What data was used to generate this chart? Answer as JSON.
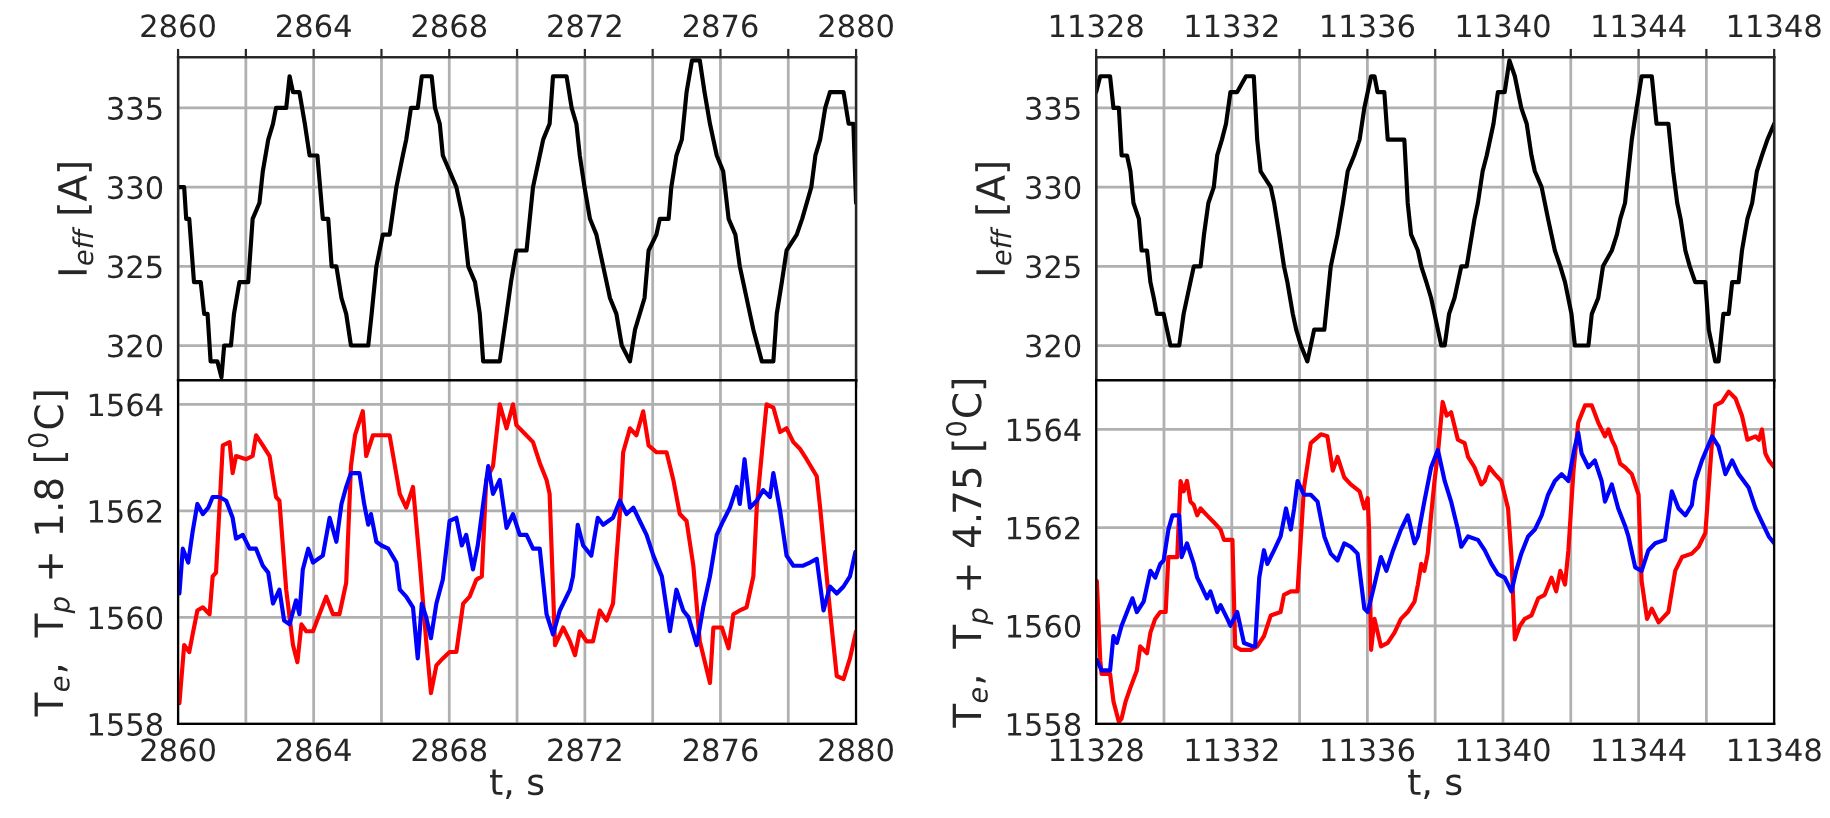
{
  "chart_data": [
    {
      "type": "line",
      "ylabel": "I$_{eff}$ [A]",
      "tick_labels": "y",
      "xlim": [
        2860,
        2880
      ],
      "x2lim": [
        2860,
        2880
      ],
      "x2ticks": [
        2860,
        {
          "value": 2862,
          "label": null
        },
        2864,
        {
          "value": 2866,
          "label": null
        },
        2868,
        {
          "value": 2870,
          "label": null
        },
        2872,
        {
          "value": 2874,
          "label": null
        },
        2876,
        {
          "value": 2878,
          "label": null
        },
        2880
      ],
      "ylim": [
        317.8,
        338.2
      ],
      "yticks": [
        320,
        325,
        330,
        335
      ],
      "grid": true,
      "series": [
        {
          "color": "#000000",
          "x": [
            2860,
            2860.18,
            2860.24,
            2860.33,
            2860.47,
            2860.67,
            2860.77,
            2860.87,
            2860.96,
            2861.16,
            2861.28,
            2861.36,
            2861.56,
            2861.65,
            2861.81,
            2862.07,
            2862.2,
            2862.4,
            2862.5,
            2862.66,
            2862.8,
            2862.89,
            2863.19,
            2863.29,
            2863.39,
            2863.58,
            2863.74,
            2863.88,
            2864.11,
            2864.27,
            2864.43,
            2864.53,
            2864.67,
            2864.82,
            2864.96,
            2865.1,
            2865.61,
            2865.71,
            2865.85,
            2866.04,
            2866.24,
            2866.44,
            2866.63,
            2866.73,
            2866.87,
            2867.07,
            2867.19,
            2867.48,
            2867.58,
            2867.72,
            2867.81,
            2868.01,
            2868.21,
            2868.41,
            2868.56,
            2868.76,
            2868.9,
            2869.0,
            2869.49,
            2869.69,
            2869.82,
            2869.98,
            2870.28,
            2870.47,
            2870.67,
            2870.77,
            2870.96,
            2871.06,
            2871.46,
            2871.61,
            2871.75,
            2871.85,
            2871.99,
            2872.15,
            2872.34,
            2872.64,
            2872.74,
            2872.93,
            2873.09,
            2873.33,
            2873.48,
            2873.76,
            2873.88,
            2874.11,
            2874.21,
            2874.47,
            2874.55,
            2874.7,
            2874.86,
            2875.0,
            2875.16,
            2875.39,
            2875.53,
            2875.69,
            2875.89,
            2876.08,
            2876.24,
            2876.44,
            2876.57,
            2876.67,
            2876.87,
            2876.97,
            2877.22,
            2877.56,
            2877.66,
            2877.81,
            2877.95,
            2878.25,
            2878.41,
            2878.68,
            2878.8,
            2878.94,
            2879.09,
            2879.23,
            2879.63,
            2879.78,
            2879.92,
            2880
          ],
          "values": [
            330,
            330,
            328,
            328,
            324,
            324,
            322,
            322,
            319,
            319,
            318,
            320,
            320,
            322,
            324,
            324,
            328,
            329,
            331,
            333,
            334,
            335,
            335,
            337,
            336,
            336,
            334,
            332,
            332,
            328,
            328,
            325,
            325,
            323,
            322,
            320,
            320,
            322,
            325,
            327,
            327,
            330,
            332,
            333,
            335,
            335,
            337,
            337,
            335,
            334,
            332,
            331,
            330,
            328,
            325,
            324,
            322,
            319,
            319,
            322,
            324,
            326,
            326,
            330,
            332,
            333,
            334,
            337,
            337,
            335,
            334,
            332,
            330,
            328,
            327,
            324,
            323,
            322,
            320,
            319,
            321,
            323,
            326,
            327,
            328,
            328,
            330,
            332,
            333,
            336,
            338,
            338,
            336,
            334,
            332,
            331,
            328,
            327,
            325,
            324,
            322,
            321,
            319,
            319,
            322,
            324,
            326,
            327,
            328,
            330,
            332,
            333,
            335,
            336,
            336,
            334,
            334,
            329
          ]
        }
      ]
    },
    {
      "type": "line",
      "ylabel": "I$_{eff}$ [A]",
      "tick_labels": "y",
      "xlim": [
        11328,
        11348
      ],
      "x2lim": [
        11328,
        11348
      ],
      "x2ticks": [
        11328,
        {
          "value": 11330,
          "label": null
        },
        11332,
        {
          "value": 11334,
          "label": null
        },
        11336,
        {
          "value": 11338,
          "label": null
        },
        11340,
        {
          "value": 11342,
          "label": null
        },
        11344,
        {
          "value": 11346,
          "label": null
        },
        11348
      ],
      "ylim": [
        317.8,
        338.2
      ],
      "yticks": [
        320,
        325,
        330,
        335
      ],
      "grid": true,
      "series": [
        {
          "color": "#000000",
          "x": [
            11328,
            11328.12,
            11328.41,
            11328.51,
            11328.67,
            11328.75,
            11328.91,
            11329.01,
            11329.1,
            11329.26,
            11329.34,
            11329.5,
            11329.6,
            11329.7,
            11329.79,
            11329.99,
            11330.19,
            11330.45,
            11330.58,
            11330.78,
            11330.88,
            11331.08,
            11331.18,
            11331.31,
            11331.47,
            11331.57,
            11331.71,
            11331.83,
            11331.96,
            11332.16,
            11332.42,
            11332.65,
            11332.75,
            11332.85,
            11333.15,
            11333.25,
            11333.4,
            11333.54,
            11333.64,
            11333.8,
            11333.9,
            11334.04,
            11334.23,
            11334.33,
            11334.43,
            11334.73,
            11334.92,
            11335.12,
            11335.28,
            11335.42,
            11335.61,
            11335.77,
            11335.91,
            11336.11,
            11336.21,
            11336.3,
            11336.5,
            11336.6,
            11337.09,
            11337.19,
            11337.29,
            11337.49,
            11337.59,
            11337.74,
            11337.88,
            11338.08,
            11338.18,
            11338.28,
            11338.41,
            11338.57,
            11338.77,
            11338.93,
            11339.16,
            11339.26,
            11339.4,
            11339.52,
            11339.72,
            11339.85,
            11340.05,
            11340.19,
            11340.35,
            11340.54,
            11340.7,
            11340.84,
            11340.94,
            11341.14,
            11341.33,
            11341.43,
            11341.53,
            11341.69,
            11341.83,
            11342.02,
            11342.12,
            11342.52,
            11342.62,
            11342.81,
            11342.95,
            11343.21,
            11343.36,
            11343.46,
            11343.6,
            11343.7,
            11343.8,
            11343.94,
            11344.09,
            11344.39,
            11344.53,
            11344.88,
            11345.02,
            11345.14,
            11345.24,
            11345.38,
            11345.51,
            11345.67,
            11345.97,
            11346.07,
            11346.26,
            11346.36,
            11346.5,
            11346.66,
            11346.76,
            11346.95,
            11347.05,
            11347.21,
            11347.35,
            11347.49,
            11347.64,
            11347.8,
            11348
          ],
          "values": [
            336,
            337,
            337,
            335,
            335,
            332,
            332,
            331,
            329,
            328,
            326,
            326,
            324,
            323,
            322,
            322,
            320,
            320,
            322,
            324,
            325,
            325,
            327,
            329,
            330,
            332,
            333,
            334,
            336,
            336,
            337,
            337,
            333,
            331,
            330,
            329,
            327,
            325,
            324,
            322,
            321,
            320,
            319,
            320,
            321,
            321,
            325,
            327,
            329,
            331,
            332,
            333,
            335,
            337,
            337,
            336,
            336,
            333,
            333,
            329,
            327,
            326,
            325,
            324,
            323,
            321,
            320,
            320,
            322,
            323,
            325,
            325,
            328,
            329,
            331,
            332,
            334,
            336,
            336,
            338,
            337,
            335,
            334,
            332,
            331,
            330,
            328,
            327,
            326,
            325,
            324,
            322,
            320,
            320,
            322,
            323,
            325,
            326,
            327,
            328,
            329,
            331,
            333,
            335,
            337,
            337,
            334,
            334,
            331,
            329,
            328,
            326,
            325,
            324,
            324,
            321,
            319,
            319,
            322,
            322,
            324,
            324,
            326,
            328,
            329,
            331,
            332,
            333,
            334
          ]
        }
      ]
    },
    {
      "type": "line",
      "xlabel": "t, s",
      "ylabel": "T$_{e}$,  T$_{p}$ + 1.8 [$^{0}$C]",
      "xlim": [
        2860,
        2880
      ],
      "xticks": [
        2860,
        {
          "value": 2862,
          "label": null
        },
        2864,
        {
          "value": 2866,
          "label": null
        },
        2868,
        {
          "value": 2870,
          "label": null
        },
        2872,
        {
          "value": 2874,
          "label": null
        },
        2876,
        {
          "value": 2878,
          "label": null
        },
        2880
      ],
      "ylim": [
        1558,
        1564.45
      ],
      "yticks": [
        1558,
        1560,
        1562,
        1564
      ],
      "grid": true,
      "series": [
        {
          "color": "#ff0000",
          "x": [
            2860.04,
            2860.18,
            2860.33,
            2860.43,
            2860.57,
            2860.73,
            2860.93,
            2861.02,
            2861.12,
            2861.32,
            2861.52,
            2861.61,
            2861.71,
            2862.01,
            2862.2,
            2862.3,
            2862.5,
            2862.7,
            2862.89,
            2862.99,
            2863.19,
            2863.39,
            2863.52,
            2863.64,
            2863.78,
            2863.98,
            2864.17,
            2864.37,
            2864.57,
            2864.76,
            2864.96,
            2865.1,
            2865.22,
            2865.35,
            2865.45,
            2865.55,
            2865.75,
            2866.04,
            2866.24,
            2866.54,
            2866.73,
            2866.93,
            2867.13,
            2867.32,
            2867.46,
            2867.62,
            2867.81,
            2868.01,
            2868.21,
            2868.41,
            2868.6,
            2868.8,
            2868.96,
            2869.09,
            2869.29,
            2869.49,
            2869.69,
            2869.88,
            2869.98,
            2870.18,
            2870.47,
            2870.67,
            2870.87,
            2870.96,
            2871.12,
            2871.36,
            2871.56,
            2871.71,
            2871.85,
            2872.05,
            2872.24,
            2872.44,
            2872.64,
            2872.83,
            2873.03,
            2873.13,
            2873.33,
            2873.52,
            2873.72,
            2873.88,
            2874.11,
            2874.41,
            2874.61,
            2874.8,
            2875.0,
            2875.2,
            2875.39,
            2875.69,
            2875.79,
            2876.04,
            2876.24,
            2876.38,
            2876.57,
            2876.77,
            2876.97,
            2877.07,
            2877.26,
            2877.36,
            2877.56,
            2877.76,
            2877.95,
            2878.15,
            2878.35,
            2878.54,
            2878.84,
            2878.94,
            2879.23,
            2879.43,
            2879.63,
            2879.82,
            2880
          ],
          "values": [
            1558.39,
            1559.48,
            1559.35,
            1559.68,
            1560.13,
            1560.19,
            1560.06,
            1560.77,
            1560.84,
            1563.23,
            1563.29,
            1562.71,
            1563.03,
            1562.97,
            1563.03,
            1563.42,
            1563.23,
            1563.03,
            1562.26,
            1562.19,
            1560.52,
            1559.48,
            1559.16,
            1559.87,
            1559.74,
            1559.74,
            1560.06,
            1560.39,
            1560.06,
            1560.06,
            1560.65,
            1562.84,
            1563.42,
            1563.68,
            1563.87,
            1563.03,
            1563.42,
            1563.42,
            1563.42,
            1562.32,
            1562.06,
            1562.45,
            1561.03,
            1559.55,
            1558.58,
            1559.1,
            1559.23,
            1559.35,
            1559.35,
            1560.26,
            1560.39,
            1560.71,
            1560.77,
            1562.58,
            1562.84,
            1564.0,
            1563.55,
            1564.0,
            1563.61,
            1563.48,
            1563.29,
            1562.9,
            1562.58,
            1562.32,
            1559.48,
            1559.81,
            1559.55,
            1559.29,
            1559.74,
            1559.55,
            1559.55,
            1560.13,
            1559.94,
            1560.26,
            1561.94,
            1563.1,
            1563.55,
            1563.42,
            1563.87,
            1563.23,
            1563.1,
            1563.1,
            1562.58,
            1561.94,
            1561.81,
            1560.97,
            1559.55,
            1558.77,
            1559.81,
            1559.81,
            1559.42,
            1560.06,
            1560.13,
            1560.19,
            1560.77,
            1562.06,
            1563.35,
            1564.0,
            1563.94,
            1563.48,
            1563.55,
            1563.29,
            1563.16,
            1562.97,
            1562.65,
            1562.06,
            1560.13,
            1558.9,
            1558.84,
            1559.23,
            1559.74
          ]
        },
        {
          "color": "#0000ff",
          "x": [
            2860.04,
            2860.14,
            2860.3,
            2860.43,
            2860.57,
            2860.73,
            2860.89,
            2861.02,
            2861.22,
            2861.42,
            2861.61,
            2861.71,
            2861.91,
            2862.11,
            2862.3,
            2862.5,
            2862.66,
            2862.8,
            2862.99,
            2863.13,
            2863.29,
            2863.48,
            2863.58,
            2863.68,
            2863.84,
            2863.98,
            2864.27,
            2864.47,
            2864.67,
            2864.82,
            2864.96,
            2865.1,
            2865.35,
            2865.49,
            2865.61,
            2865.69,
            2865.85,
            2866.0,
            2866.2,
            2866.44,
            2866.54,
            2866.73,
            2866.93,
            2867.07,
            2867.19,
            2867.32,
            2867.46,
            2867.62,
            2867.81,
            2868.01,
            2868.21,
            2868.37,
            2868.5,
            2868.7,
            2868.84,
            2869.0,
            2869.15,
            2869.29,
            2869.49,
            2869.69,
            2869.88,
            2870.08,
            2870.28,
            2870.47,
            2870.67,
            2870.87,
            2871.06,
            2871.26,
            2871.56,
            2871.65,
            2871.79,
            2871.95,
            2872.19,
            2872.38,
            2872.54,
            2872.83,
            2873.03,
            2873.23,
            2873.43,
            2873.62,
            2873.82,
            2874.02,
            2874.27,
            2874.51,
            2874.7,
            2874.9,
            2875.06,
            2875.3,
            2875.49,
            2875.69,
            2875.89,
            2876.08,
            2876.28,
            2876.48,
            2876.57,
            2876.71,
            2876.87,
            2877.07,
            2877.26,
            2877.46,
            2877.56,
            2877.76,
            2877.95,
            2878.15,
            2878.44,
            2878.64,
            2878.84,
            2879.04,
            2879.23,
            2879.43,
            2879.63,
            2879.82,
            2879.98
          ],
          "values": [
            1560.45,
            1561.29,
            1561.03,
            1561.61,
            1562.13,
            1561.94,
            1562.06,
            1562.26,
            1562.26,
            1562.19,
            1561.87,
            1561.48,
            1561.55,
            1561.29,
            1561.29,
            1560.97,
            1560.84,
            1560.26,
            1560.52,
            1559.94,
            1559.87,
            1560.32,
            1560.06,
            1560.9,
            1561.29,
            1561.03,
            1561.16,
            1561.87,
            1561.42,
            1562.13,
            1562.45,
            1562.71,
            1562.71,
            1562.13,
            1561.74,
            1561.94,
            1561.42,
            1561.35,
            1561.29,
            1561.03,
            1560.52,
            1560.39,
            1560.19,
            1559.23,
            1560.26,
            1560.0,
            1559.61,
            1560.26,
            1560.71,
            1561.81,
            1561.87,
            1561.35,
            1561.55,
            1560.9,
            1561.35,
            1562.13,
            1562.84,
            1562.32,
            1562.58,
            1561.68,
            1561.94,
            1561.55,
            1561.55,
            1561.29,
            1561.29,
            1560.06,
            1559.68,
            1560.13,
            1560.52,
            1560.77,
            1561.74,
            1561.35,
            1561.16,
            1561.87,
            1561.74,
            1561.87,
            1562.19,
            1561.94,
            1562.06,
            1561.81,
            1561.55,
            1561.16,
            1560.77,
            1559.74,
            1560.52,
            1560.13,
            1560.0,
            1559.48,
            1560.19,
            1560.77,
            1561.55,
            1561.81,
            1562.06,
            1562.45,
            1562.13,
            1562.97,
            1562.06,
            1562.19,
            1562.39,
            1562.26,
            1562.71,
            1562.0,
            1561.16,
            1560.97,
            1560.97,
            1561.03,
            1561.1,
            1560.13,
            1560.58,
            1560.45,
            1560.58,
            1560.77,
            1561.23
          ]
        }
      ]
    },
    {
      "type": "line",
      "xlabel": "t, s",
      "ylabel": "T$_{e}$,  T$_{p}$ + 4.75 [$^{0}$C]",
      "xlim": [
        11328,
        11348
      ],
      "xticks": [
        11328,
        {
          "value": 11330,
          "label": null
        },
        11332,
        {
          "value": 11334,
          "label": null
        },
        11336,
        {
          "value": 11338,
          "label": null
        },
        11340,
        {
          "value": 11342,
          "label": null
        },
        11344,
        {
          "value": 11346,
          "label": null
        },
        11348
      ],
      "ylim": [
        1558,
        1565
      ],
      "yticks": [
        1558,
        1560,
        1562,
        1564
      ],
      "grid": true,
      "series": [
        {
          "color": "#ff0000",
          "x": [
            11328.02,
            11328.12,
            11328.16,
            11328.41,
            11328.51,
            11328.67,
            11328.75,
            11328.87,
            11329.01,
            11329.2,
            11329.3,
            11329.5,
            11329.6,
            11329.74,
            11329.89,
            11330.05,
            11330.13,
            11330.39,
            11330.49,
            11330.58,
            11330.68,
            11330.78,
            11330.88,
            11330.98,
            11331.08,
            11331.27,
            11331.47,
            11331.67,
            11331.77,
            11332.02,
            11332.1,
            11332.26,
            11332.56,
            11332.75,
            11332.95,
            11333.15,
            11333.44,
            11333.54,
            11333.74,
            11333.94,
            11334.04,
            11334.13,
            11334.33,
            11334.63,
            11334.82,
            11334.98,
            11335.12,
            11335.32,
            11335.51,
            11335.77,
            11335.91,
            11336.01,
            11336.05,
            11336.11,
            11336.21,
            11336.4,
            11336.6,
            11336.8,
            11336.99,
            11337.19,
            11337.39,
            11337.49,
            11337.59,
            11337.68,
            11337.78,
            11337.88,
            11337.98,
            11338.08,
            11338.22,
            11338.34,
            11338.47,
            11338.67,
            11338.87,
            11338.97,
            11339.16,
            11339.36,
            11339.46,
            11339.6,
            11339.76,
            11339.95,
            11340.15,
            11340.25,
            11340.35,
            11340.5,
            11340.64,
            11340.84,
            11341.04,
            11341.23,
            11341.43,
            11341.57,
            11341.69,
            11341.83,
            11341.93,
            11342.08,
            11342.22,
            11342.42,
            11342.62,
            11342.81,
            11343.01,
            11343.11,
            11343.21,
            11343.31,
            11343.46,
            11343.6,
            11343.8,
            11344.0,
            11344.09,
            11344.25,
            11344.39,
            11344.59,
            11344.88,
            11345.08,
            11345.28,
            11345.57,
            11345.77,
            11345.97,
            11346.17,
            11346.26,
            11346.46,
            11346.66,
            11346.86,
            11347.05,
            11347.21,
            11347.45,
            11347.55,
            11347.64,
            11347.74,
            11347.84,
            11348
          ],
          "values": [
            1560.91,
            1559.3,
            1559.02,
            1559.02,
            1558.46,
            1558.04,
            1558.11,
            1558.46,
            1558.74,
            1559.09,
            1559.58,
            1559.44,
            1559.86,
            1560.14,
            1560.28,
            1560.28,
            1561.4,
            1561.4,
            1562.95,
            1562.74,
            1562.95,
            1562.53,
            1562.46,
            1562.25,
            1562.39,
            1562.25,
            1562.11,
            1561.96,
            1561.75,
            1561.75,
            1559.58,
            1559.51,
            1559.51,
            1559.58,
            1559.79,
            1560.21,
            1560.28,
            1560.63,
            1560.7,
            1560.7,
            1561.82,
            1562.81,
            1563.72,
            1563.9,
            1563.86,
            1563.16,
            1563.44,
            1563.02,
            1562.88,
            1562.74,
            1562.39,
            1562.6,
            1561.96,
            1559.51,
            1560.14,
            1559.58,
            1559.65,
            1559.86,
            1560.14,
            1560.28,
            1560.49,
            1560.84,
            1561.26,
            1561.12,
            1561.47,
            1562.25,
            1562.95,
            1563.51,
            1564.56,
            1564.28,
            1564.35,
            1563.79,
            1563.72,
            1563.44,
            1563.23,
            1562.88,
            1562.95,
            1563.23,
            1563.09,
            1562.95,
            1562.39,
            1561.4,
            1559.72,
            1560.0,
            1560.14,
            1560.21,
            1560.56,
            1560.63,
            1560.98,
            1560.7,
            1561.12,
            1560.84,
            1561.54,
            1563.16,
            1564.14,
            1564.49,
            1564.49,
            1564.14,
            1563.86,
            1564.0,
            1563.79,
            1563.65,
            1563.3,
            1563.23,
            1563.09,
            1562.67,
            1560.91,
            1560.14,
            1560.35,
            1560.07,
            1560.28,
            1561.12,
            1561.4,
            1561.47,
            1561.61,
            1561.89,
            1563.79,
            1564.49,
            1564.56,
            1564.77,
            1564.63,
            1564.28,
            1563.79,
            1563.86,
            1563.79,
            1564.0,
            1563.51,
            1563.37,
            1563.23
          ]
        },
        {
          "color": "#0000ff",
          "x": [
            11328.02,
            11328.16,
            11328.41,
            11328.51,
            11328.61,
            11328.75,
            11328.91,
            11329.07,
            11329.2,
            11329.4,
            11329.6,
            11329.74,
            11329.89,
            11329.99,
            11330.13,
            11330.25,
            11330.45,
            11330.49,
            11330.52,
            11330.68,
            11330.78,
            11330.88,
            11330.98,
            11331.08,
            11331.27,
            11331.37,
            11331.57,
            11331.67,
            11331.87,
            11331.96,
            11332.16,
            11332.36,
            11332.62,
            11332.69,
            11332.81,
            11332.95,
            11333.05,
            11333.25,
            11333.44,
            11333.6,
            11333.74,
            11333.84,
            11333.94,
            11334.13,
            11334.33,
            11334.53,
            11334.73,
            11334.92,
            11335.12,
            11335.32,
            11335.51,
            11335.71,
            11335.91,
            11336.01,
            11336.21,
            11336.4,
            11336.56,
            11336.76,
            11336.99,
            11337.19,
            11337.39,
            11337.49,
            11337.68,
            11337.88,
            11338.08,
            11338.28,
            11338.47,
            11338.67,
            11338.77,
            11338.97,
            11339.26,
            11339.46,
            11339.66,
            11339.85,
            11340.05,
            11340.25,
            11340.39,
            11340.54,
            11340.74,
            11340.94,
            11341.14,
            11341.33,
            11341.53,
            11341.73,
            11341.93,
            11342.12,
            11342.22,
            11342.32,
            11342.52,
            11342.71,
            11342.91,
            11343.01,
            11343.21,
            11343.4,
            11343.6,
            11343.7,
            11343.9,
            11344.09,
            11344.29,
            11344.49,
            11344.78,
            11344.98,
            11345.18,
            11345.38,
            11345.57,
            11345.67,
            11345.87,
            11346.17,
            11346.36,
            11346.56,
            11346.76,
            11346.95,
            11347.25,
            11347.45,
            11347.64,
            11347.84,
            11348
          ],
          "values": [
            1559.3,
            1559.09,
            1559.09,
            1559.79,
            1559.65,
            1560.0,
            1560.28,
            1560.56,
            1560.28,
            1560.49,
            1561.12,
            1560.98,
            1561.26,
            1561.33,
            1561.96,
            1562.25,
            1562.25,
            1561.82,
            1561.4,
            1561.68,
            1561.47,
            1561.26,
            1560.98,
            1560.84,
            1560.56,
            1560.7,
            1560.28,
            1560.42,
            1560.14,
            1560.0,
            1560.28,
            1559.65,
            1559.58,
            1559.58,
            1560.98,
            1561.54,
            1561.26,
            1561.54,
            1561.82,
            1562.39,
            1561.96,
            1562.39,
            1562.95,
            1562.67,
            1562.67,
            1562.53,
            1561.82,
            1561.47,
            1561.33,
            1561.68,
            1561.61,
            1561.47,
            1560.35,
            1560.28,
            1560.84,
            1561.4,
            1561.12,
            1561.54,
            1561.96,
            1562.25,
            1561.68,
            1561.82,
            1562.53,
            1563.23,
            1563.58,
            1562.95,
            1562.53,
            1561.96,
            1561.61,
            1561.82,
            1561.75,
            1561.54,
            1561.26,
            1561.05,
            1560.98,
            1560.7,
            1561.12,
            1561.47,
            1561.82,
            1561.96,
            1562.25,
            1562.67,
            1562.95,
            1563.09,
            1562.95,
            1563.65,
            1563.93,
            1563.51,
            1563.23,
            1563.37,
            1562.95,
            1562.53,
            1562.88,
            1562.39,
            1562.04,
            1561.82,
            1561.19,
            1561.12,
            1561.54,
            1561.68,
            1561.75,
            1562.74,
            1562.39,
            1562.25,
            1562.46,
            1562.95,
            1563.37,
            1563.86,
            1563.65,
            1563.09,
            1563.37,
            1563.09,
            1562.81,
            1562.39,
            1562.11,
            1561.82,
            1561.68
          ]
        }
      ]
    }
  ]
}
